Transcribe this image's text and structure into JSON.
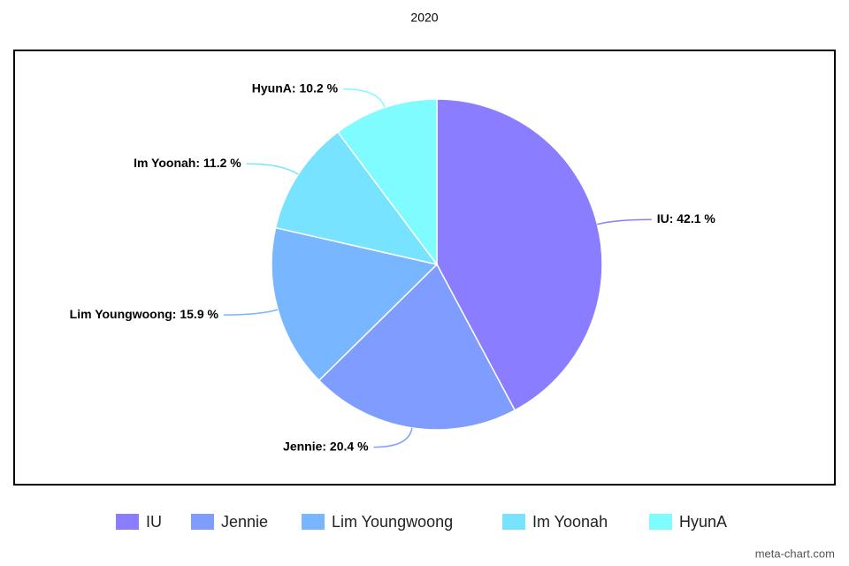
{
  "chart_data": {
    "type": "pie",
    "title": "2020",
    "categories": [
      "IU",
      "Jennie",
      "Lim Youngwoong",
      "Im Yoonah",
      "HyunA"
    ],
    "values": [
      42.1,
      20.4,
      15.9,
      11.2,
      10.2
    ],
    "value_labels": [
      "IU: 42.1 %",
      "Jennie: 20.4 %",
      "Lim Youngwoong: 15.9 %",
      "Im Yoonah: 11.2 %",
      "HyunA: 10.2 %"
    ],
    "colors": [
      "#8a7dff",
      "#7f9cff",
      "#78b6ff",
      "#78e3ff",
      "#7ffcff"
    ],
    "legend": "bottom",
    "watermark": "meta-chart.com"
  }
}
